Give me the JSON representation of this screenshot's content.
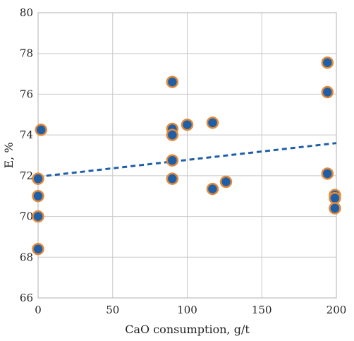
{
  "chart_data": {
    "type": "scatter",
    "title": "",
    "xlabel": "CaO consumption, g/t",
    "ylabel": "E, %",
    "xlim": [
      0,
      200
    ],
    "ylim": [
      66,
      80
    ],
    "x_ticks": [
      "0",
      "50",
      "100",
      "150",
      "200"
    ],
    "y_ticks": [
      "66",
      "68",
      "70",
      "72",
      "74",
      "76",
      "78",
      "80"
    ],
    "grid": true,
    "colors": {
      "point_fill": "#1f5fa8",
      "point_edge": "#e08a3c",
      "trend": "#1f5fa8"
    },
    "series": [
      {
        "points": [
          {
            "x": 0,
            "y": 71.85
          },
          {
            "x": 0,
            "y": 71.0
          },
          {
            "x": 0,
            "y": 70.0
          },
          {
            "x": 0,
            "y": 68.4
          },
          {
            "x": 2,
            "y": 74.25
          },
          {
            "x": 90,
            "y": 76.6
          },
          {
            "x": 90,
            "y": 74.3
          },
          {
            "x": 90,
            "y": 74.0
          },
          {
            "x": 90,
            "y": 72.75
          },
          {
            "x": 90,
            "y": 71.85
          },
          {
            "x": 100,
            "y": 74.5
          },
          {
            "x": 117,
            "y": 74.6
          },
          {
            "x": 117,
            "y": 71.35
          },
          {
            "x": 126,
            "y": 71.7
          },
          {
            "x": 194,
            "y": 77.55
          },
          {
            "x": 194,
            "y": 76.1
          },
          {
            "x": 194,
            "y": 72.1
          },
          {
            "x": 199,
            "y": 71.05
          },
          {
            "x": 199,
            "y": 70.9
          },
          {
            "x": 199,
            "y": 70.4
          }
        ]
      }
    ],
    "trendline": {
      "style": "dashed",
      "x": [
        0,
        200
      ],
      "y": [
        71.95,
        73.6
      ]
    }
  }
}
